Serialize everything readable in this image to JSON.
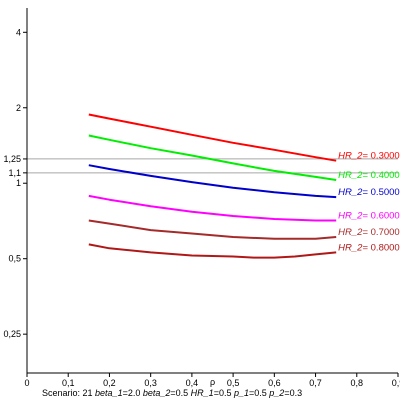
{
  "chart_data": {
    "type": "line",
    "xlabel": "ρ",
    "ylabel": "",
    "xlim": [
      0,
      0.9
    ],
    "ylim": [
      0.175,
      5.0
    ],
    "y_scale": "log",
    "grid": false,
    "x_ticks": [
      0,
      0.1,
      0.2,
      0.3,
      0.4,
      0.5,
      0.6,
      0.7,
      0.8,
      0.9
    ],
    "x_tick_labels": [
      "0",
      "0,1",
      "0,2",
      "0,3",
      "0,4",
      "0,5",
      "0,6",
      "0,7",
      "0,8",
      "0,9"
    ],
    "y_ticks": [
      0.25,
      0.5,
      1,
      1.1,
      1.25,
      2,
      4
    ],
    "y_tick_labels": [
      "0,25",
      "0,5",
      "1",
      "1,1",
      "1,25",
      "2",
      "4"
    ],
    "reference_lines": [
      1.1,
      1.25
    ],
    "series": [
      {
        "label_key": "HR_2",
        "label_value": "0.3000",
        "color": "#ff0000",
        "x": [
          0.15,
          0.2,
          0.3,
          0.4,
          0.5,
          0.6,
          0.7,
          0.75
        ],
        "y": [
          1.88,
          1.81,
          1.68,
          1.56,
          1.45,
          1.36,
          1.27,
          1.23
        ]
      },
      {
        "label_key": "HR_2",
        "label_value": "0.4000",
        "color": "#00ee00",
        "x": [
          0.15,
          0.2,
          0.3,
          0.4,
          0.5,
          0.6,
          0.7,
          0.75
        ],
        "y": [
          1.55,
          1.49,
          1.38,
          1.29,
          1.2,
          1.12,
          1.06,
          1.03
        ]
      },
      {
        "label_key": "HR_2",
        "label_value": "0.5000",
        "color": "#0000cc",
        "x": [
          0.15,
          0.2,
          0.3,
          0.4,
          0.5,
          0.6,
          0.7,
          0.75
        ],
        "y": [
          1.18,
          1.14,
          1.07,
          1.01,
          0.96,
          0.92,
          0.89,
          0.88
        ]
      },
      {
        "label_key": "HR_2",
        "label_value": "0.6000",
        "color": "#ff00ff",
        "x": [
          0.15,
          0.2,
          0.3,
          0.4,
          0.5,
          0.6,
          0.7,
          0.75
        ],
        "y": [
          0.89,
          0.86,
          0.81,
          0.77,
          0.74,
          0.72,
          0.71,
          0.71
        ]
      },
      {
        "label_key": "HR_2",
        "label_value": "0.7000",
        "color": "#a52a2a",
        "x": [
          0.15,
          0.2,
          0.3,
          0.4,
          0.5,
          0.6,
          0.65,
          0.7,
          0.75
        ],
        "y": [
          0.71,
          0.69,
          0.65,
          0.63,
          0.61,
          0.6,
          0.6,
          0.6,
          0.61
        ]
      },
      {
        "label_key": "HR_2",
        "label_value": "0.8000",
        "color": "#b01818",
        "x": [
          0.15,
          0.2,
          0.3,
          0.4,
          0.5,
          0.55,
          0.6,
          0.65,
          0.7,
          0.75
        ],
        "y": [
          0.57,
          0.55,
          0.53,
          0.515,
          0.51,
          0.505,
          0.505,
          0.51,
          0.52,
          0.53
        ]
      }
    ]
  },
  "caption": {
    "scenario_text": "Scenario: 21",
    "params": [
      {
        "key": "beta_1",
        "value": "2.0"
      },
      {
        "key": "beta_2",
        "value": "0.5"
      },
      {
        "key": "HR_1",
        "value": "0.5"
      },
      {
        "key": "p_1",
        "value": "0.5"
      },
      {
        "key": "p_2",
        "value": "0.3"
      }
    ]
  }
}
